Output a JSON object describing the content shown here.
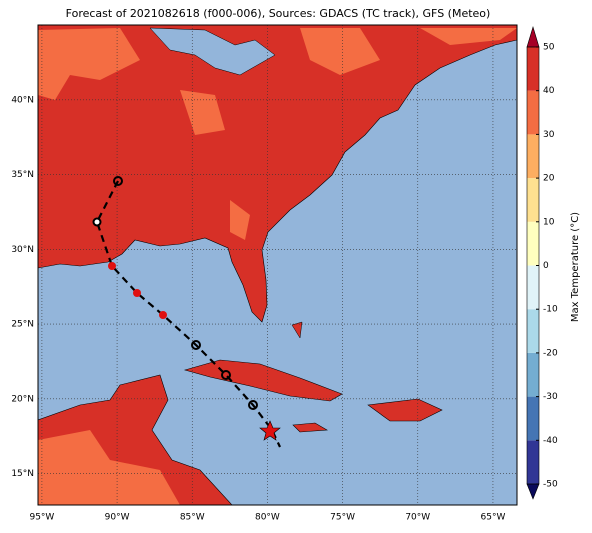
{
  "title": "Forecast of 2021082618 (f000-006), Sources: GDACS (TC track), GFS (Meteo)",
  "map": {
    "xlim": [
      -95.26,
      -63.4
    ],
    "ylim": [
      12.9,
      45.0
    ],
    "xticks": [
      {
        "value": -95,
        "label": "95°W"
      },
      {
        "value": -90,
        "label": "90°W"
      },
      {
        "value": -85,
        "label": "85°W"
      },
      {
        "value": -80,
        "label": "80°W"
      },
      {
        "value": -75,
        "label": "75°W"
      },
      {
        "value": -70,
        "label": "70°W"
      },
      {
        "value": -65,
        "label": "65°W"
      }
    ],
    "yticks": [
      {
        "value": 15,
        "label": "15°N"
      },
      {
        "value": 20,
        "label": "20°N"
      },
      {
        "value": 25,
        "label": "25°N"
      },
      {
        "value": 30,
        "label": "30°N"
      },
      {
        "value": 35,
        "label": "35°N"
      },
      {
        "value": 40,
        "label": "40°N"
      }
    ],
    "grid": true
  },
  "colorbar": {
    "label": "Max Temperature (°C)",
    "lim": [
      -50,
      50
    ],
    "ticks": [
      -50,
      -40,
      -30,
      -20,
      -10,
      0,
      10,
      20,
      30,
      40,
      50
    ],
    "colors": [
      "#313695",
      "#4575b4",
      "#74add1",
      "#abd9e9",
      "#e0f3f8",
      "#ffffbf",
      "#fee090",
      "#fdae61",
      "#f46d43",
      "#d73027"
    ],
    "extend_colors": [
      "#0a0a5a",
      "#a50026"
    ]
  }
}
